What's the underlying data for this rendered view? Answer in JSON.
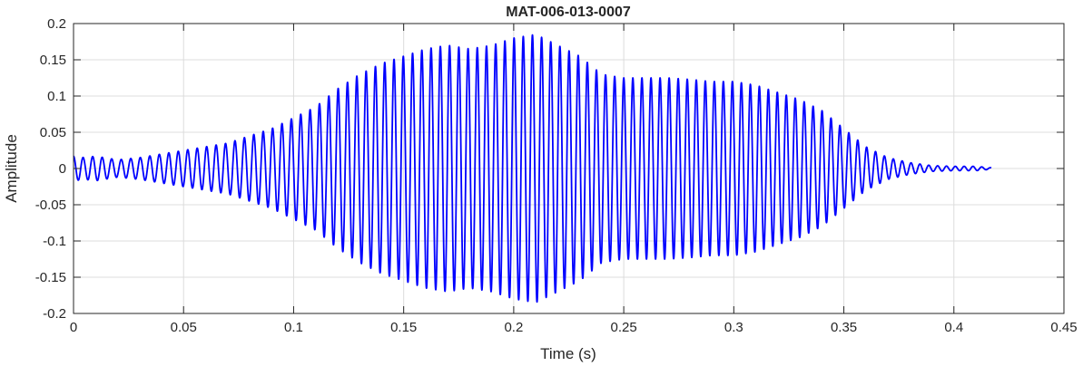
{
  "chart_data": {
    "type": "line",
    "title": "MAT-006-013-0007",
    "xlabel": "Time (s)",
    "ylabel": "Amplitude",
    "xlim": [
      0,
      0.45
    ],
    "ylim": [
      -0.2,
      0.2
    ],
    "grid": true,
    "x_ticks": [
      0,
      0.05,
      0.1,
      0.15,
      0.2,
      0.25,
      0.3,
      0.35,
      0.4,
      0.45
    ],
    "x_tick_labels": [
      "0",
      "0.05",
      "0.1",
      "0.15",
      "0.2",
      "0.25",
      "0.3",
      "0.35",
      "0.4",
      "0.45"
    ],
    "y_ticks": [
      -0.2,
      -0.15,
      -0.1,
      -0.05,
      0,
      0.05,
      0.1,
      0.15,
      0.2
    ],
    "y_tick_labels": [
      "-0.2",
      "-0.15",
      "-0.1",
      "-0.05",
      "0",
      "0.05",
      "0.1",
      "0.15",
      "0.2"
    ],
    "series": [
      {
        "color": "#0000ff",
        "x_range": [
          0,
          0.417
        ],
        "envelope": {
          "t": [
            0,
            0.005,
            0.01,
            0.02,
            0.03,
            0.04,
            0.05,
            0.06,
            0.07,
            0.08,
            0.09,
            0.1,
            0.11,
            0.12,
            0.13,
            0.14,
            0.15,
            0.16,
            0.17,
            0.18,
            0.19,
            0.2,
            0.21,
            0.22,
            0.23,
            0.24,
            0.25,
            0.26,
            0.27,
            0.28,
            0.29,
            0.3,
            0.31,
            0.32,
            0.33,
            0.34,
            0.35,
            0.36,
            0.37,
            0.38,
            0.39,
            0.4,
            0.41,
            0.417
          ],
          "amplitude": [
            0.017,
            0.015,
            0.017,
            0.012,
            0.015,
            0.02,
            0.025,
            0.03,
            0.035,
            0.045,
            0.055,
            0.07,
            0.085,
            0.11,
            0.13,
            0.145,
            0.155,
            0.165,
            0.17,
            0.165,
            0.17,
            0.18,
            0.185,
            0.17,
            0.155,
            0.13,
            0.125,
            0.125,
            0.125,
            0.123,
            0.12,
            0.12,
            0.115,
            0.105,
            0.095,
            0.08,
            0.055,
            0.03,
            0.015,
            0.008,
            0.004,
            0.003,
            0.003,
            0.001
          ]
        },
        "frequency_hz": [
          230,
          250
        ]
      }
    ]
  }
}
